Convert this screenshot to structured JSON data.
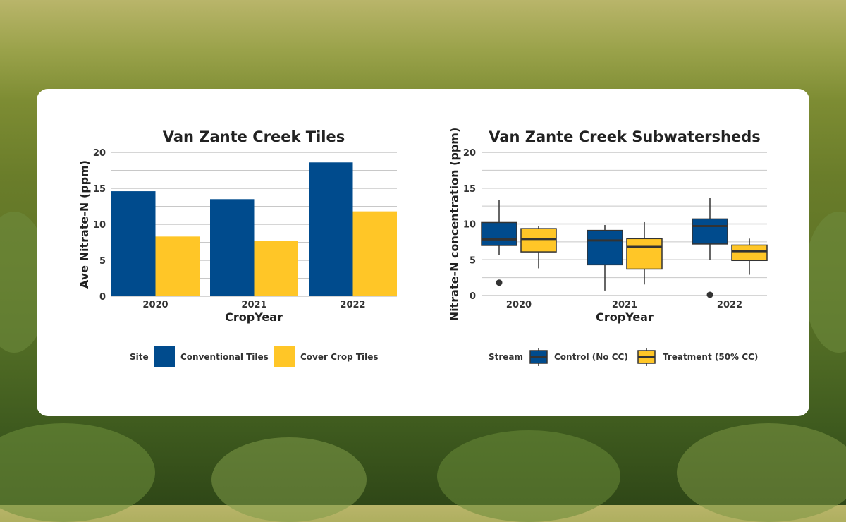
{
  "colors": {
    "blue": "#004b8d",
    "yellow": "#ffc627",
    "grid": "#c8c8c8",
    "ink": "#333333"
  },
  "chart_data": [
    {
      "type": "bar",
      "title": "Van Zante Creek Tiles",
      "xlabel": "CropYear",
      "ylabel": "Ave Nitrate-N (ppm)",
      "ylim": [
        0,
        20
      ],
      "yticks": [
        0,
        5,
        10,
        15,
        20
      ],
      "grid": true,
      "legend_position": "bottom",
      "legend_title": "Site",
      "categories": [
        "2020",
        "2021",
        "2022"
      ],
      "series": [
        {
          "name": "Conventional Tiles",
          "color": "#004b8d",
          "values": [
            14.6,
            13.5,
            18.6
          ]
        },
        {
          "name": "Cover Crop Tiles",
          "color": "#ffc627",
          "values": [
            8.3,
            7.7,
            11.8
          ]
        }
      ]
    },
    {
      "type": "box",
      "title": "Van Zante Creek Subwatersheds",
      "xlabel": "CropYear",
      "ylabel": "Nitrate-N concentration (ppm)",
      "ylim": [
        0,
        20
      ],
      "yticks": [
        0,
        5,
        10,
        15,
        20
      ],
      "grid": true,
      "legend_position": "bottom",
      "legend_title": "Stream",
      "categories": [
        "2020",
        "2021",
        "2022"
      ],
      "series": [
        {
          "name": "Control (No CC)",
          "color": "#004b8d",
          "boxes": [
            {
              "min": 5.7,
              "q1": 7.0,
              "median": 7.85,
              "q3": 10.2,
              "max": 13.3,
              "outliers": [
                1.8
              ]
            },
            {
              "min": 0.7,
              "q1": 4.3,
              "median": 7.7,
              "q3": 9.1,
              "max": 9.85,
              "outliers": []
            },
            {
              "min": 5.0,
              "q1": 7.2,
              "median": 9.7,
              "q3": 10.7,
              "max": 13.6,
              "outliers": [
                0.1
              ]
            }
          ]
        },
        {
          "name": "Treatment (50% CC)",
          "color": "#ffc627",
          "boxes": [
            {
              "min": 3.8,
              "q1": 6.1,
              "median": 7.9,
              "q3": 9.35,
              "max": 9.75,
              "outliers": []
            },
            {
              "min": 1.55,
              "q1": 3.7,
              "median": 6.8,
              "q3": 7.95,
              "max": 10.25,
              "outliers": []
            },
            {
              "min": 2.9,
              "q1": 4.9,
              "median": 6.2,
              "q3": 7.05,
              "max": 7.95,
              "outliers": []
            }
          ]
        }
      ]
    }
  ]
}
